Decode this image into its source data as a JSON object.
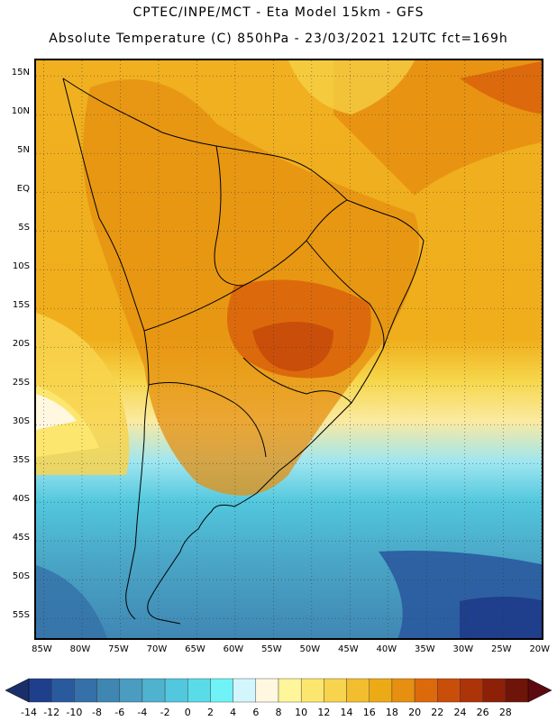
{
  "header": {
    "line1": "CPTEC/INPE/MCT -  Eta Model 15km - GFS",
    "line2": "Absolute Temperature (C) 850hPa - 23/03/2021 12UTC fct=169h"
  },
  "axes": {
    "lat_labels": [
      "15N",
      "10N",
      "5N",
      "EQ",
      "5S",
      "10S",
      "15S",
      "20S",
      "25S",
      "30S",
      "35S",
      "40S",
      "45S",
      "50S",
      "55S"
    ],
    "lat_values": [
      15,
      10,
      5,
      0,
      -5,
      -10,
      -15,
      -20,
      -25,
      -30,
      -35,
      -40,
      -45,
      -50,
      -55
    ],
    "lon_labels": [
      "85W",
      "80W",
      "75W",
      "70W",
      "65W",
      "60W",
      "55W",
      "50W",
      "45W",
      "40W",
      "35W",
      "30W",
      "25W",
      "20W"
    ],
    "lon_values": [
      -85,
      -80,
      -75,
      -70,
      -65,
      -60,
      -55,
      -50,
      -45,
      -40,
      -35,
      -30,
      -25,
      -20
    ]
  },
  "colorbar": {
    "labels": [
      "-14",
      "-12",
      "-10",
      "-8",
      "-6",
      "-4",
      "-2",
      "0",
      "2",
      "4",
      "6",
      "8",
      "10",
      "12",
      "14",
      "16",
      "18",
      "20",
      "22",
      "24",
      "26",
      "28"
    ],
    "colors": [
      "#1f3f8c",
      "#2a5a9e",
      "#3570a8",
      "#3f86b3",
      "#4a9cc0",
      "#4fb2ce",
      "#52c7dd",
      "#5adbe8",
      "#6ff3f7",
      "#d2f6fb",
      "#fff7e0",
      "#fff59a",
      "#fde66e",
      "#f8d34e",
      "#f2bd2e",
      "#ecaa16",
      "#e68f10",
      "#dc6a0c",
      "#c94e0a",
      "#ad3308",
      "#8e2008",
      "#6e1408"
    ]
  }
}
